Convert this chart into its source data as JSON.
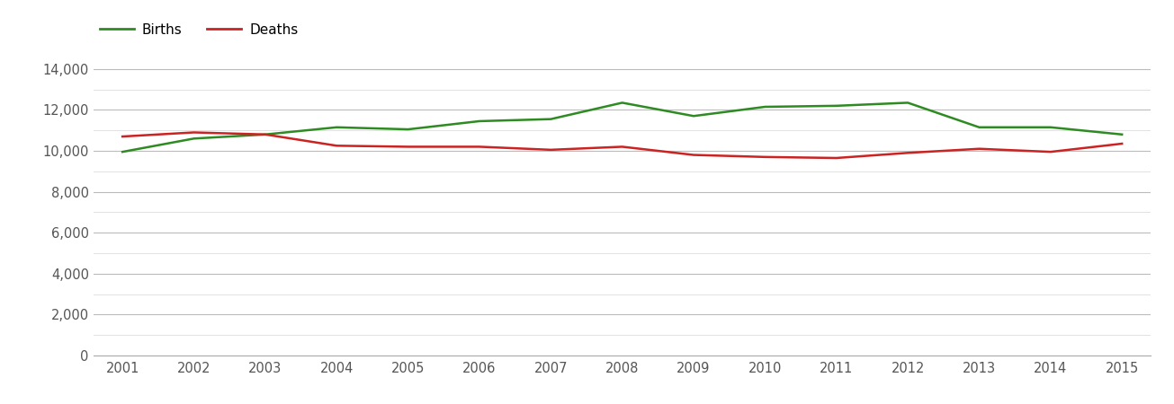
{
  "years": [
    2001,
    2002,
    2003,
    2004,
    2005,
    2006,
    2007,
    2008,
    2009,
    2010,
    2011,
    2012,
    2013,
    2014,
    2015
  ],
  "births": [
    9950,
    10600,
    10800,
    11150,
    11050,
    11450,
    11550,
    12350,
    11700,
    12150,
    12200,
    12350,
    11150,
    11150,
    10800
  ],
  "deaths": [
    10700,
    10900,
    10800,
    10250,
    10200,
    10200,
    10050,
    10200,
    9800,
    9700,
    9650,
    9900,
    10100,
    9950,
    10350
  ],
  "births_color": "#2e8b22",
  "deaths_color": "#cc2222",
  "background_color": "#ffffff",
  "major_grid_color": "#bbbbbb",
  "minor_grid_color": "#dddddd",
  "ylim": [
    0,
    15000
  ],
  "yticks_major": [
    0,
    2000,
    4000,
    6000,
    8000,
    10000,
    12000,
    14000
  ],
  "yticks_minor": [
    1000,
    3000,
    5000,
    7000,
    9000,
    11000,
    13000
  ],
  "legend_labels": [
    "Births",
    "Deaths"
  ],
  "line_width": 1.8,
  "tick_label_color": "#555555",
  "tick_label_fontsize": 10.5
}
